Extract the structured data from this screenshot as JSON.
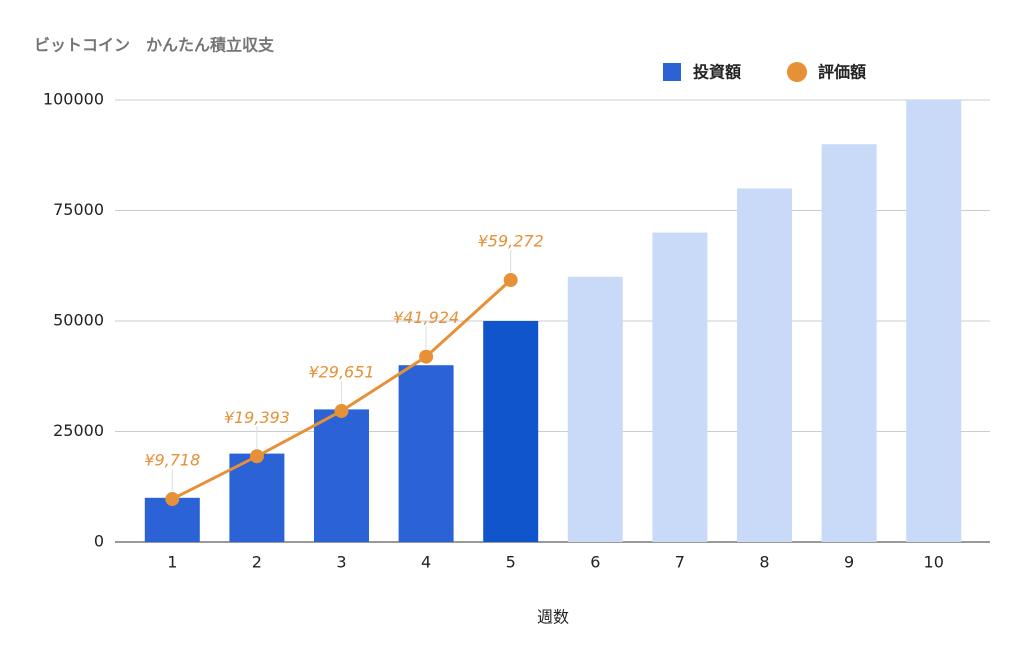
{
  "chart_data": {
    "type": "bar-line",
    "title": "ビットコイン　かんたん積立収支",
    "x_label": "週数",
    "categories": [
      "1",
      "2",
      "3",
      "4",
      "5",
      "6",
      "7",
      "8",
      "9",
      "10"
    ],
    "series": [
      {
        "name": "投資額",
        "type": "bar",
        "color": "#2b63d6",
        "colors": [
          "#2b63d6",
          "#2b63d6",
          "#2b63d6",
          "#2b63d6",
          "#1155cc",
          "#c9daf8",
          "#c9daf8",
          "#c9daf8",
          "#c9daf8",
          "#c9daf8"
        ],
        "values": [
          10000,
          20000,
          30000,
          40000,
          50000,
          60000,
          70000,
          80000,
          90000,
          100000
        ]
      },
      {
        "name": "評価額",
        "type": "line",
        "color": "#e69138",
        "values": [
          9718,
          19393,
          29651,
          41924,
          59272,
          null,
          null,
          null,
          null,
          null
        ],
        "value_labels": [
          "¥9,718",
          "¥19,393",
          "¥29,651",
          "¥41,924",
          "¥59,272",
          null,
          null,
          null,
          null,
          null
        ]
      }
    ],
    "ylim": [
      0,
      100000
    ],
    "yticks": [
      0,
      25000,
      50000,
      75000,
      100000
    ],
    "grid": true,
    "legend": "top-right"
  }
}
